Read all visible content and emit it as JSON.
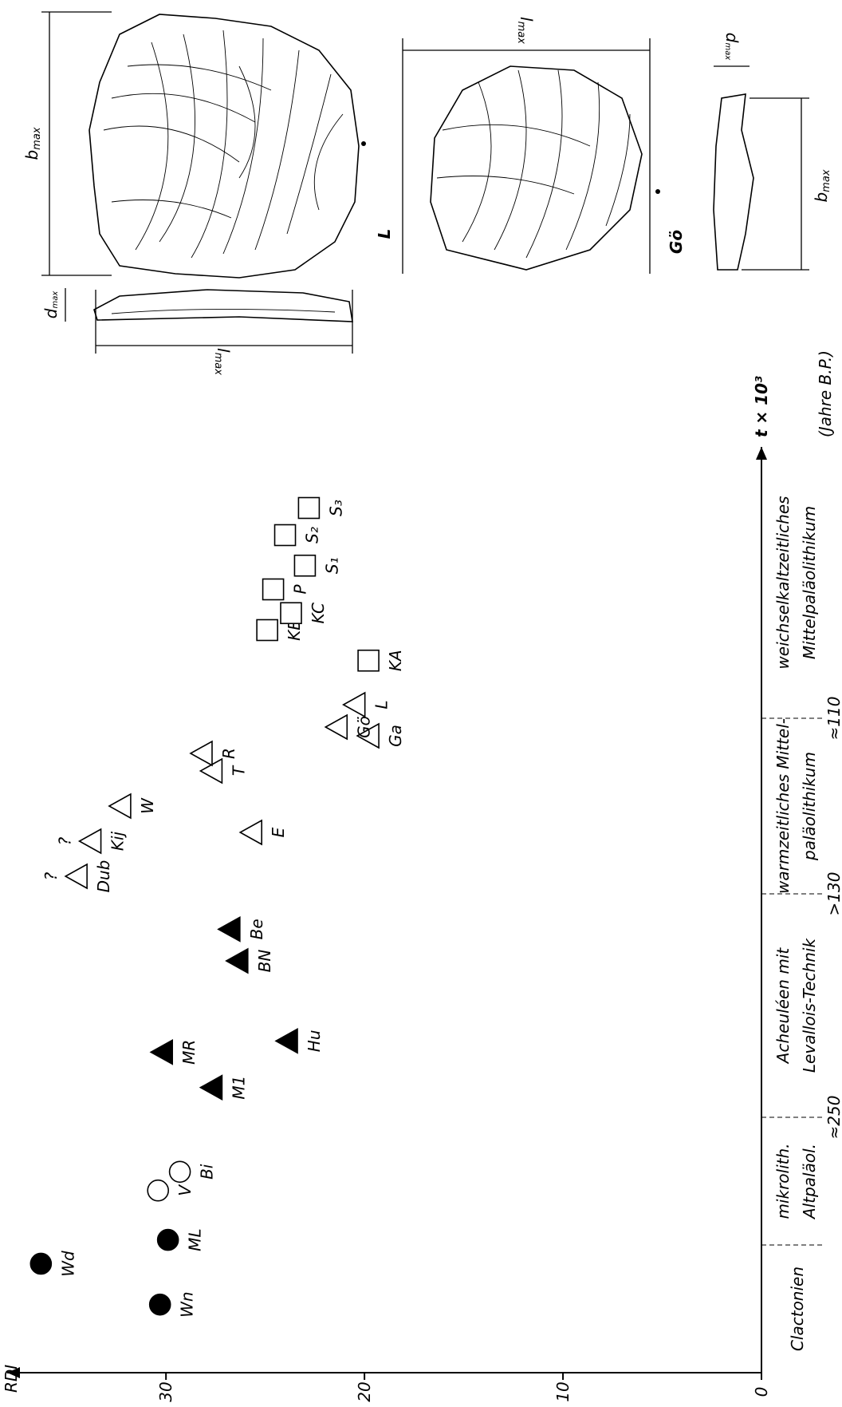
{
  "chart_data": {
    "type": "scatter",
    "y_label": "RDI",
    "x_label": "t × 10³",
    "x_unit": "(Jahre B.P.)",
    "xlim": [
      400,
      30
    ],
    "xticks": [
      {
        "value": 250,
        "label": "≈250"
      },
      {
        "value": 130,
        "label": ">130"
      },
      {
        "value": 110,
        "label": "≈110"
      }
    ],
    "ylim": [
      0,
      38
    ],
    "yticks": [
      0,
      10,
      20,
      30
    ],
    "periods": [
      [
        "Clactonien"
      ],
      [
        "mikrolith.",
        "Altpaläol."
      ],
      [
        "Acheuléen mit",
        "Levallois-Technik"
      ],
      [
        "warmzeitliches Mittel-",
        "paläolithikum"
      ],
      [
        "weichselkaltzeitliches",
        "Mittelpaläolithikum"
      ]
    ],
    "series": [
      {
        "marker": "circle",
        "filled": true,
        "labels": [
          "Wn",
          "Wd",
          "ML"
        ],
        "x": [
          360,
          336,
          322
        ],
        "values": [
          30.3,
          36.3,
          29.9
        ]
      },
      {
        "marker": "circle",
        "filled": false,
        "labels": [
          "V",
          "Bi"
        ],
        "x": [
          293,
          282
        ],
        "values": [
          30.4,
          29.3
        ]
      },
      {
        "marker": "triangle",
        "filled": true,
        "labels": [
          "M1",
          "MR",
          "Hu",
          "BN",
          "Be"
        ],
        "x": [
          234,
          215,
          209,
          166,
          149
        ],
        "values": [
          27.7,
          30.2,
          23.9,
          26.4,
          26.8
        ]
      },
      {
        "marker": "triangle",
        "filled": false,
        "note": "?",
        "labels": [
          "Dub",
          "Kij"
        ],
        "x": [
          128,
          124
        ],
        "values": [
          34.5,
          33.8
        ]
      },
      {
        "marker": "triangle",
        "filled": false,
        "labels": [
          "W",
          "E",
          "T",
          "R",
          "Ga",
          "Gö",
          "L"
        ],
        "x": [
          120,
          123,
          116,
          114,
          112,
          111,
          106
        ],
        "values": [
          32.3,
          25.7,
          27.7,
          28.2,
          19.8,
          21.4,
          20.5
        ]
      },
      {
        "marker": "square",
        "filled": false,
        "labels": [
          "KA",
          "KB",
          "KC",
          "P",
          "S₁",
          "S₂",
          "S₃"
        ],
        "x": [
          93,
          84,
          79,
          72,
          65,
          56,
          48
        ],
        "values": [
          19.8,
          24.9,
          23.7,
          24.6,
          23.0,
          24.0,
          22.8
        ]
      }
    ]
  },
  "figures": [
    {
      "name": "L",
      "dims": [
        "b",
        "l",
        "d"
      ],
      "subscript": "max"
    },
    {
      "name": "Gö",
      "dims": [
        "l",
        "b",
        "d"
      ],
      "subscript": "max"
    }
  ]
}
